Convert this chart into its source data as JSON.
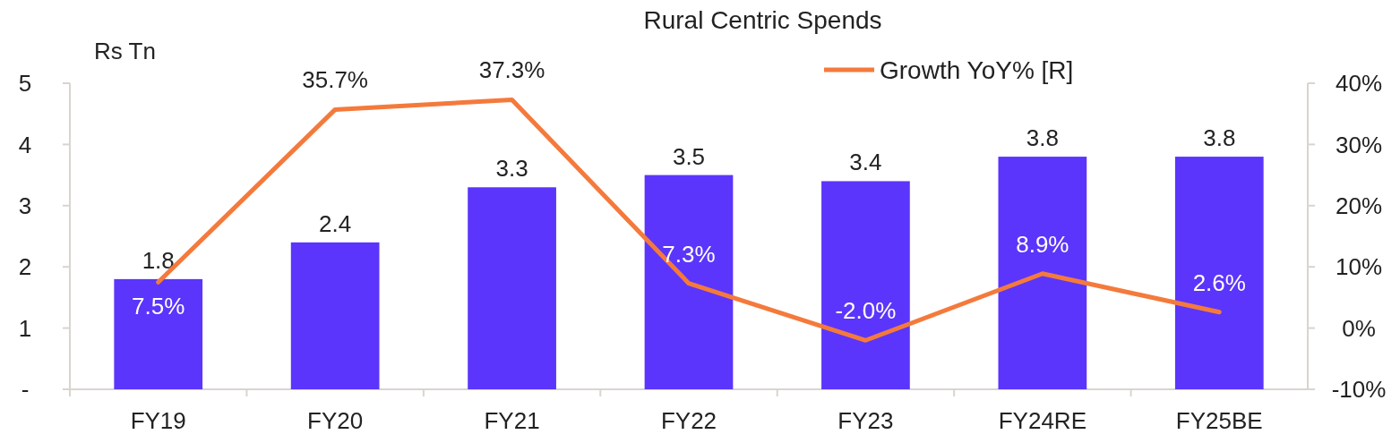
{
  "chart_data": {
    "type": "bar",
    "title": "Rural Centric Spends",
    "ylabel": "Rs Tn",
    "categories": [
      "FY19",
      "FY20",
      "FY21",
      "FY22",
      "FY23",
      "FY24RE",
      "FY25BE"
    ],
    "series": [
      {
        "color": "#5b35fb",
        "values": [
          1.8,
          2.4,
          3.3,
          3.5,
          3.4,
          3.8,
          3.8
        ]
      },
      {
        "type": "line",
        "name": "Growth YoY% [R]",
        "axis": "y2",
        "color": "#f47a3c",
        "values": [
          7.5,
          35.7,
          37.3,
          7.3,
          -2.0,
          8.9,
          2.6
        ],
        "value_labels": [
          "7.5%",
          "35.7%",
          "37.3%",
          "7.3%",
          "-2.0%",
          "8.9%",
          "2.6%"
        ]
      }
    ],
    "ylim": [
      0,
      5
    ],
    "yticks": [
      {
        "value": 0,
        "label": "-"
      },
      1,
      2,
      3,
      4,
      5
    ],
    "y2lim": [
      -10,
      40
    ],
    "y2ticks": [
      {
        "value": -10,
        "label": "-10%"
      },
      {
        "value": 0,
        "label": "0%"
      },
      {
        "value": 10,
        "label": "10%"
      },
      {
        "value": 20,
        "label": "20%"
      },
      {
        "value": 30,
        "label": "30%"
      },
      {
        "value": 40,
        "label": "40%"
      }
    ],
    "data_labels": true,
    "legend": "top right",
    "grid": false
  }
}
